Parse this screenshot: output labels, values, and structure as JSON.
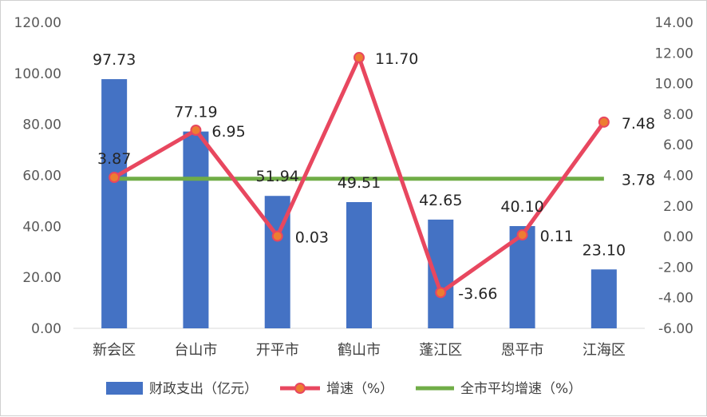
{
  "chart_data": {
    "type": "bar",
    "categories": [
      "新会区",
      "台山市",
      "开平市",
      "鹤山市",
      "蓬江区",
      "恩平市",
      "江海区"
    ],
    "series": [
      {
        "name": "财政支出（亿元）",
        "type": "bar",
        "axis": "left",
        "color": "#4472C4",
        "values": [
          97.73,
          77.19,
          51.94,
          49.51,
          42.65,
          40.1,
          23.1
        ],
        "labels": [
          "97.73",
          "77.19",
          "51.94",
          "49.51",
          "42.65",
          "40.10",
          "23.10"
        ]
      },
      {
        "name": "增速（%）",
        "type": "line",
        "axis": "right",
        "color": "#E8475F",
        "marker_color": "#ED7D31",
        "values": [
          3.87,
          6.95,
          0.03,
          11.7,
          -3.66,
          0.11,
          7.48
        ],
        "labels": [
          "3.87",
          "6.95",
          "0.03",
          "11.70",
          "-3.66",
          "0.11",
          "7.48"
        ]
      },
      {
        "name": "全市平均增速（%）",
        "type": "line",
        "axis": "right",
        "color": "#70AD47",
        "values": [
          3.78,
          3.78,
          3.78,
          3.78,
          3.78,
          3.78,
          3.78
        ],
        "end_label": "3.78"
      }
    ],
    "y_left": {
      "min": 0,
      "max": 120,
      "step": 20,
      "ticks": [
        "0.00",
        "20.00",
        "40.00",
        "60.00",
        "80.00",
        "100.00",
        "120.00"
      ]
    },
    "y_right": {
      "min": -6,
      "max": 14,
      "step": 2,
      "ticks": [
        "-6.00",
        "-4.00",
        "-2.00",
        "0.00",
        "2.00",
        "4.00",
        "6.00",
        "8.00",
        "10.00",
        "12.00",
        "14.00"
      ]
    },
    "grid": false,
    "legend": "bottom"
  }
}
